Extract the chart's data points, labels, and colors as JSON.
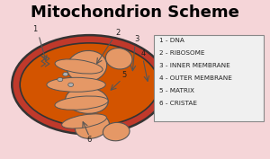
{
  "title": "Mitochondrion Scheme",
  "title_fontsize": 13,
  "bg_color": "#f5d5d8",
  "legend_labels": [
    "1 - DNA",
    "2 - RIBOSOME",
    "3 - INNER MEMBRANE",
    "4 - OUTER MEMBRANE",
    "5 - MATRIX",
    "6 - CRISTAE"
  ],
  "outer_membrane_color": "#c0392b",
  "outer_membrane_edge": "#333333",
  "inner_fill_color": "#d35400",
  "matrix_color": "#c0392b",
  "cristae_color": "#e59866",
  "cristae_edge": "#555555",
  "dna_color": "#555555",
  "label_color": "#222222",
  "legend_box_color": "#f0f0f0",
  "legend_edge_color": "#888888"
}
